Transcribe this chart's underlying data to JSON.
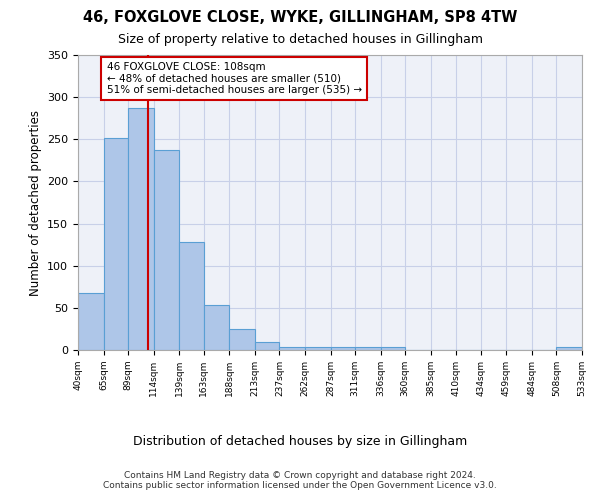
{
  "title": "46, FOXGLOVE CLOSE, WYKE, GILLINGHAM, SP8 4TW",
  "subtitle": "Size of property relative to detached houses in Gillingham",
  "xlabel": "Distribution of detached houses by size in Gillingham",
  "ylabel": "Number of detached properties",
  "bar_edges": [
    40,
    65,
    89,
    114,
    139,
    163,
    188,
    213,
    237,
    262,
    287,
    311,
    336,
    360,
    385,
    410,
    434,
    459,
    484,
    508,
    533
  ],
  "bar_heights": [
    68,
    251,
    287,
    237,
    128,
    53,
    25,
    10,
    4,
    3,
    3,
    3,
    3,
    0,
    0,
    0,
    0,
    0,
    0,
    3
  ],
  "bar_color": "#aec6e8",
  "bar_edgecolor": "#5a9fd4",
  "property_size": 108,
  "vline_color": "#cc0000",
  "annotation_text": "46 FOXGLOVE CLOSE: 108sqm\n← 48% of detached houses are smaller (510)\n51% of semi-detached houses are larger (535) →",
  "annotation_box_color": "#ffffff",
  "annotation_box_edgecolor": "#cc0000",
  "ylim": [
    0,
    350
  ],
  "yticks": [
    0,
    50,
    100,
    150,
    200,
    250,
    300,
    350
  ],
  "footer_line1": "Contains HM Land Registry data © Crown copyright and database right 2024.",
  "footer_line2": "Contains public sector information licensed under the Open Government Licence v3.0.",
  "bg_color": "#eef1f8",
  "grid_color": "#c8d0e8"
}
